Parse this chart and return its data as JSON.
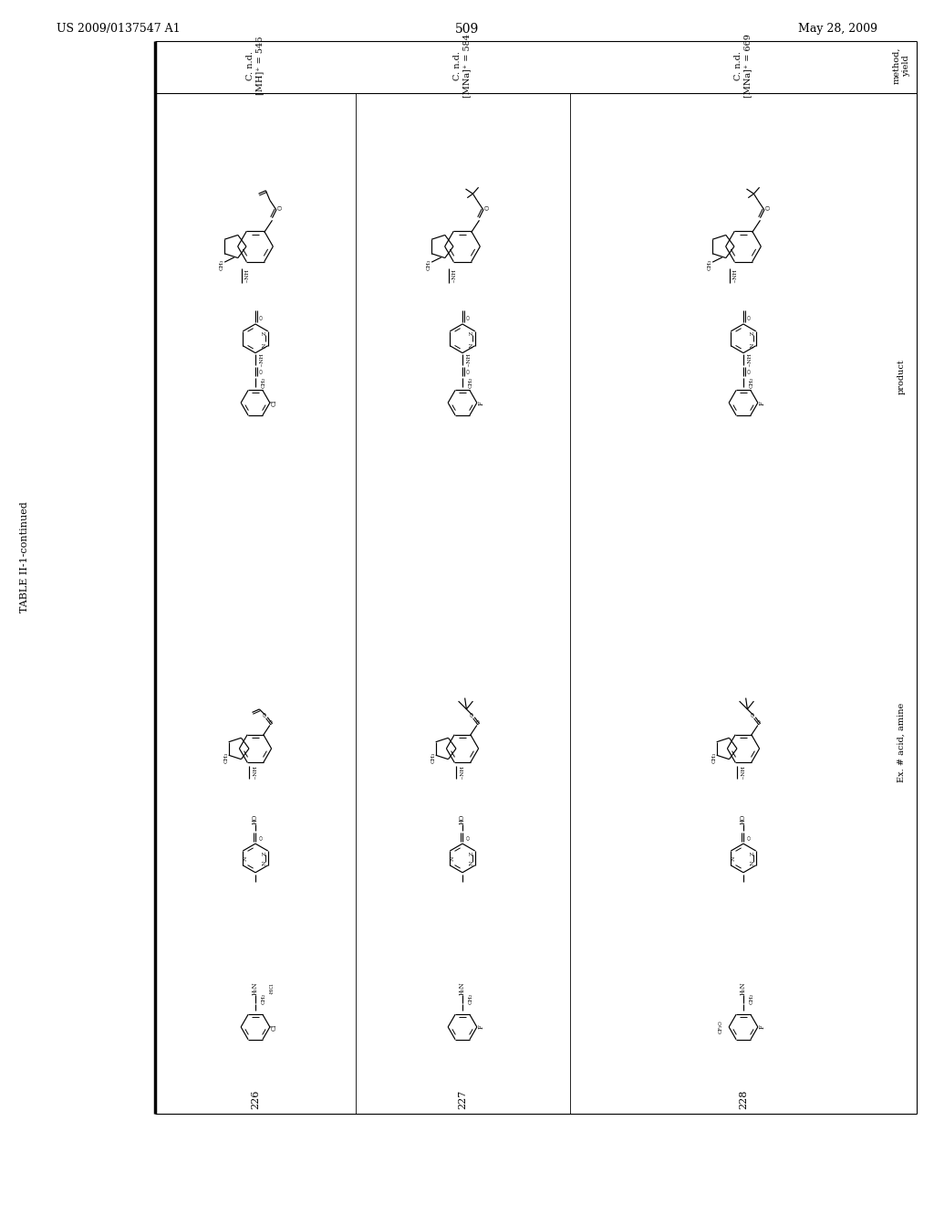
{
  "page_number": "509",
  "header_left": "US 2009/0137547 A1",
  "header_right": "May 28, 2009",
  "table_title": "TABLE II-1-continued",
  "col_headers": [
    "Ex. # acid, amine",
    "product",
    "method,\nyield"
  ],
  "examples": [
    "226",
    "227",
    "228"
  ],
  "method_info": [
    "C. n.d.\n[MH]⁺ = 546",
    "C. n.d.\n[MNa]⁺ = 584",
    "C. n.d.\n[MNa]⁺ = 669"
  ],
  "bg": "#ffffff",
  "fg": "#000000"
}
